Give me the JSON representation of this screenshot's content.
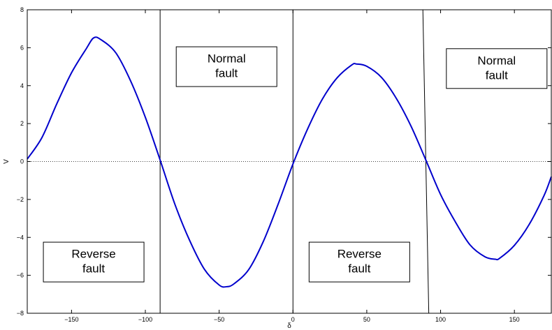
{
  "chart_data": {
    "type": "line",
    "xlabel": "δ",
    "ylabel": "V",
    "xlim": [
      -180,
      175
    ],
    "ylim": [
      -8,
      8
    ],
    "x_ticks": [
      -150,
      -100,
      -50,
      0,
      50,
      100,
      150
    ],
    "x_tick_labels": [
      "−150",
      "−100",
      "−50",
      "0",
      "50",
      "100",
      "150"
    ],
    "y_ticks": [
      -8,
      -6,
      -4,
      -2,
      0,
      2,
      4,
      6,
      8
    ],
    "y_tick_labels": [
      "−8",
      "−6",
      "−4",
      "−2",
      "0",
      "2",
      "4",
      "6",
      "8"
    ],
    "grid": false,
    "zero_line": "dotted",
    "series": [
      {
        "color": "#0000cc",
        "x": [
          -180,
          -170,
          -160,
          -150,
          -140,
          -135,
          -130,
          -120,
          -110,
          -100,
          -90,
          -80,
          -70,
          -60,
          -50,
          -45,
          -40,
          -30,
          -20,
          -10,
          0,
          10,
          20,
          30,
          40,
          43,
          50,
          60,
          70,
          80,
          90,
          100,
          110,
          120,
          130,
          137,
          140,
          150,
          160,
          170,
          175
        ],
        "y": [
          0.13,
          1.27,
          3.04,
          4.68,
          5.95,
          6.52,
          6.42,
          5.73,
          4.25,
          2.33,
          0.08,
          -2.25,
          -4.16,
          -5.68,
          -6.51,
          -6.6,
          -6.45,
          -5.7,
          -4.2,
          -2.24,
          -0.13,
          1.73,
          3.3,
          4.42,
          5.1,
          5.14,
          5.02,
          4.43,
          3.33,
          1.86,
          0.08,
          -1.74,
          -3.18,
          -4.4,
          -5.02,
          -5.15,
          -5.1,
          -4.42,
          -3.32,
          -1.81,
          -0.8
        ]
      }
    ],
    "vertical_lines": [
      {
        "x_top": -90,
        "x_bottom": -90
      },
      {
        "x_top": 0,
        "x_bottom": 0
      },
      {
        "x_top": 88,
        "x_bottom": 92
      }
    ],
    "annotations": [
      {
        "lines": [
          "Normal",
          "fault"
        ],
        "x": -45,
        "y": 5.0
      },
      {
        "lines": [
          "Normal",
          "fault"
        ],
        "x": 138,
        "y": 4.9
      },
      {
        "lines": [
          "Reverse",
          "fault"
        ],
        "x": -135,
        "y": -5.3
      },
      {
        "lines": [
          "Reverse",
          "fault"
        ],
        "x": 45,
        "y": -5.3
      }
    ]
  }
}
